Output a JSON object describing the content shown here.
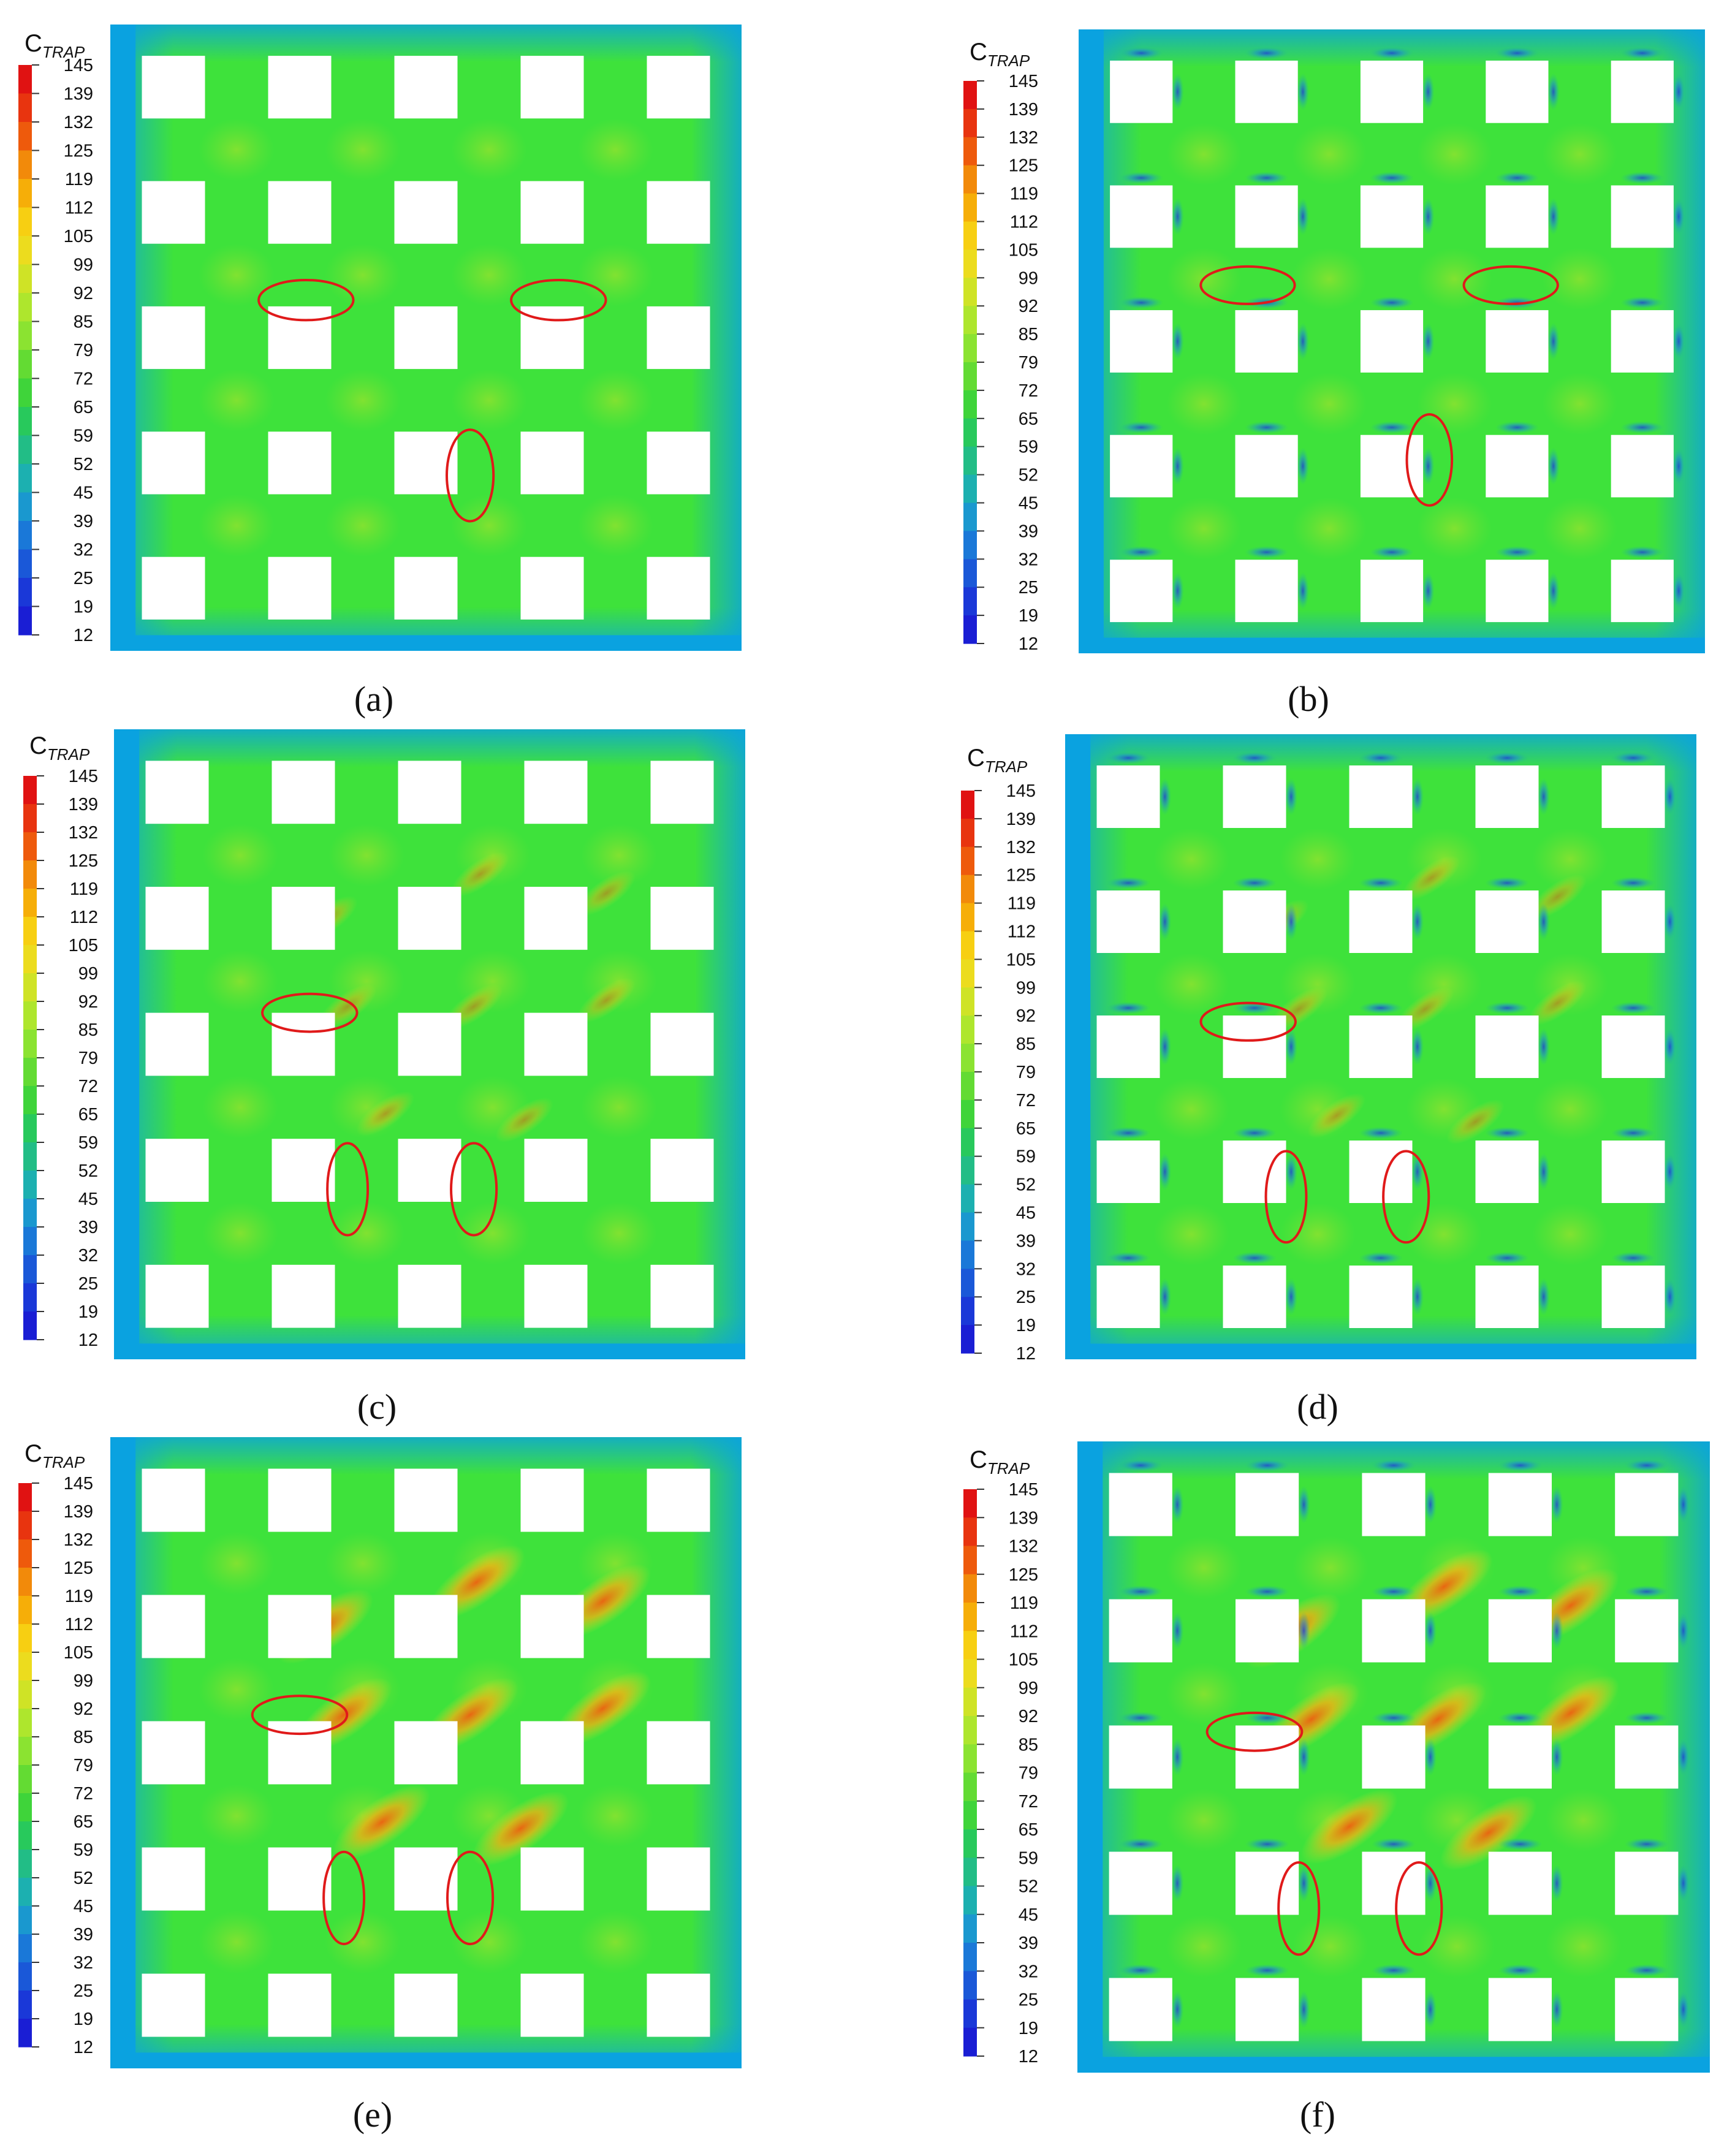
{
  "colorbar": {
    "title_main": "C",
    "title_sub": "TRAP",
    "ticks": [
      "145",
      "139",
      "132",
      "125",
      "119",
      "112",
      "105",
      "99",
      "92",
      "85",
      "79",
      "72",
      "65",
      "59",
      "52",
      "45",
      "39",
      "32",
      "25",
      "19",
      "12"
    ],
    "colors": [
      "#e01212",
      "#e8340f",
      "#ee5a0c",
      "#f28a0a",
      "#f6ae08",
      "#f7cf12",
      "#ecdc1e",
      "#cfe326",
      "#aee62d",
      "#8be331",
      "#63db33",
      "#3fd43a",
      "#28c95c",
      "#22bd86",
      "#1cb0b0",
      "#1a98cf",
      "#1a78d8",
      "#1a58d8",
      "#1a38d8",
      "#1a1ed4"
    ]
  },
  "panels": [
    {
      "label": "(a)",
      "variant": "baseline",
      "hot_spots": 0,
      "cold_spots": 0
    },
    {
      "label": "(b)",
      "variant": "cold",
      "hot_spots": 0,
      "cold_spots": 1
    },
    {
      "label": "(c)",
      "variant": "warm",
      "hot_spots": 1,
      "cold_spots": 0
    },
    {
      "label": "(d)",
      "variant": "warm-cold",
      "hot_spots": 1,
      "cold_spots": 1
    },
    {
      "label": "(e)",
      "variant": "hot",
      "hot_spots": 2,
      "cold_spots": 0
    },
    {
      "label": "(f)",
      "variant": "hot-cold",
      "hot_spots": 2,
      "cold_spots": 1
    }
  ],
  "colors": {
    "boundary": "#0aa2e0",
    "field": "#3ee23b",
    "ellipse": "#e01a1a",
    "hole": "#ffffff"
  }
}
